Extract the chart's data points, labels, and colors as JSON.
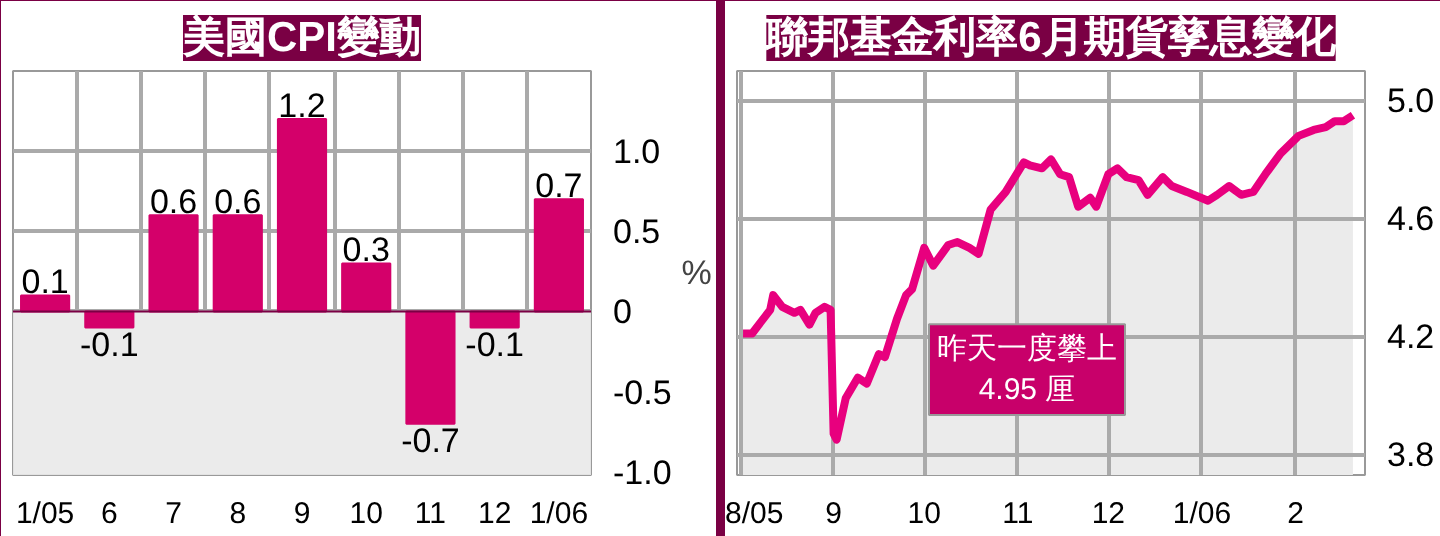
{
  "chart_data": [
    {
      "type": "bar",
      "title": "美國CPI變動",
      "ylabel": "%",
      "categories": [
        "1/05",
        "6",
        "7",
        "8",
        "9",
        "10",
        "11",
        "12",
        "1/06"
      ],
      "values": [
        0.1,
        -0.1,
        0.6,
        0.6,
        1.2,
        0.3,
        -0.7,
        -0.1,
        0.7
      ],
      "color": "#d4006a",
      "data_labels": true,
      "ylim": [
        -1.02,
        1.5
      ],
      "yticks": [
        {
          "value": -1.0,
          "label": "-1.0"
        },
        -0.5,
        0,
        0.5,
        {
          "value": 1.0,
          "label": "1.0"
        }
      ],
      "grid": true,
      "bands": [
        {
          "axis": "y",
          "from": -1.02,
          "to": 0,
          "color": "#ebebeb"
        }
      ],
      "ref_lines": [
        {
          "axis": "y",
          "value": 0,
          "color": "#7a0044"
        }
      ]
    },
    {
      "type": "area",
      "title": "聯邦基金利率6月期貨孳息變化",
      "annotations": [
        "昨天一度攀上\n4.95 厘"
      ],
      "series": [
        {
          "color": "#e8007e",
          "x": [
            "2005-08-02",
            "2005-08-05",
            "2005-08-11",
            "2005-08-12",
            "2005-08-15",
            "2005-08-19",
            "2005-08-21",
            "2005-08-24",
            "2005-08-26",
            "2005-08-29",
            "2005-08-31",
            "2005-09-01",
            "2005-09-02",
            "2005-09-05",
            "2005-09-09",
            "2005-09-12",
            "2005-09-16",
            "2005-09-18",
            "2005-09-22",
            "2005-09-25",
            "2005-09-27",
            "2005-10-01",
            "2005-10-04",
            "2005-10-09",
            "2005-10-12",
            "2005-10-16",
            "2005-10-19",
            "2005-10-23",
            "2005-10-28",
            "2005-11-03",
            "2005-11-05",
            "2005-11-09",
            "2005-11-12",
            "2005-11-15",
            "2005-11-18",
            "2005-11-21",
            "2005-11-25",
            "2005-11-27",
            "2005-12-01",
            "2005-12-04",
            "2005-12-07",
            "2005-12-11",
            "2005-12-14",
            "2005-12-19",
            "2005-12-22",
            "2005-12-27",
            "2006-01-03",
            "2006-01-06",
            "2006-01-10",
            "2006-01-14",
            "2006-01-18",
            "2006-01-22",
            "2006-01-27",
            "2006-02-02",
            "2006-02-07",
            "2006-02-11",
            "2006-02-14",
            "2006-02-17",
            "2006-02-20"
          ],
          "values": [
            4.21,
            4.21,
            4.29,
            4.34,
            4.3,
            4.28,
            4.29,
            4.24,
            4.28,
            4.3,
            4.29,
            3.87,
            3.85,
            3.99,
            4.06,
            4.04,
            4.14,
            4.13,
            4.26,
            4.34,
            4.36,
            4.5,
            4.44,
            4.51,
            4.52,
            4.5,
            4.48,
            4.63,
            4.69,
            4.79,
            4.78,
            4.77,
            4.8,
            4.75,
            4.74,
            4.64,
            4.67,
            4.64,
            4.75,
            4.77,
            4.74,
            4.73,
            4.68,
            4.74,
            4.71,
            4.69,
            4.66,
            4.68,
            4.71,
            4.68,
            4.69,
            4.75,
            4.82,
            4.88,
            4.9,
            4.91,
            4.93,
            4.93,
            4.95
          ]
        }
      ],
      "xlim": [
        "2005-07-31",
        "2006-02-24"
      ],
      "xticks": [
        {
          "value": "2005-08-01",
          "label": "8/05"
        },
        {
          "value": "2005-09-01",
          "label": "9"
        },
        {
          "value": "2005-10-01",
          "label": "10"
        },
        {
          "value": "2005-11-01",
          "label": "11"
        },
        {
          "value": "2005-12-01",
          "label": "12"
        },
        {
          "value": "2006-01-01",
          "label": "1/06"
        },
        {
          "value": "2006-02-01",
          "label": "2"
        }
      ],
      "ylim": [
        3.73,
        5.1
      ],
      "yticks": [
        {
          "value": 3.8,
          "label": "3.8"
        },
        {
          "value": 4.2,
          "label": "4.2"
        },
        {
          "value": 4.6,
          "label": "4.6"
        },
        {
          "value": 5.0,
          "label": "5.0"
        }
      ],
      "grid": true
    }
  ]
}
